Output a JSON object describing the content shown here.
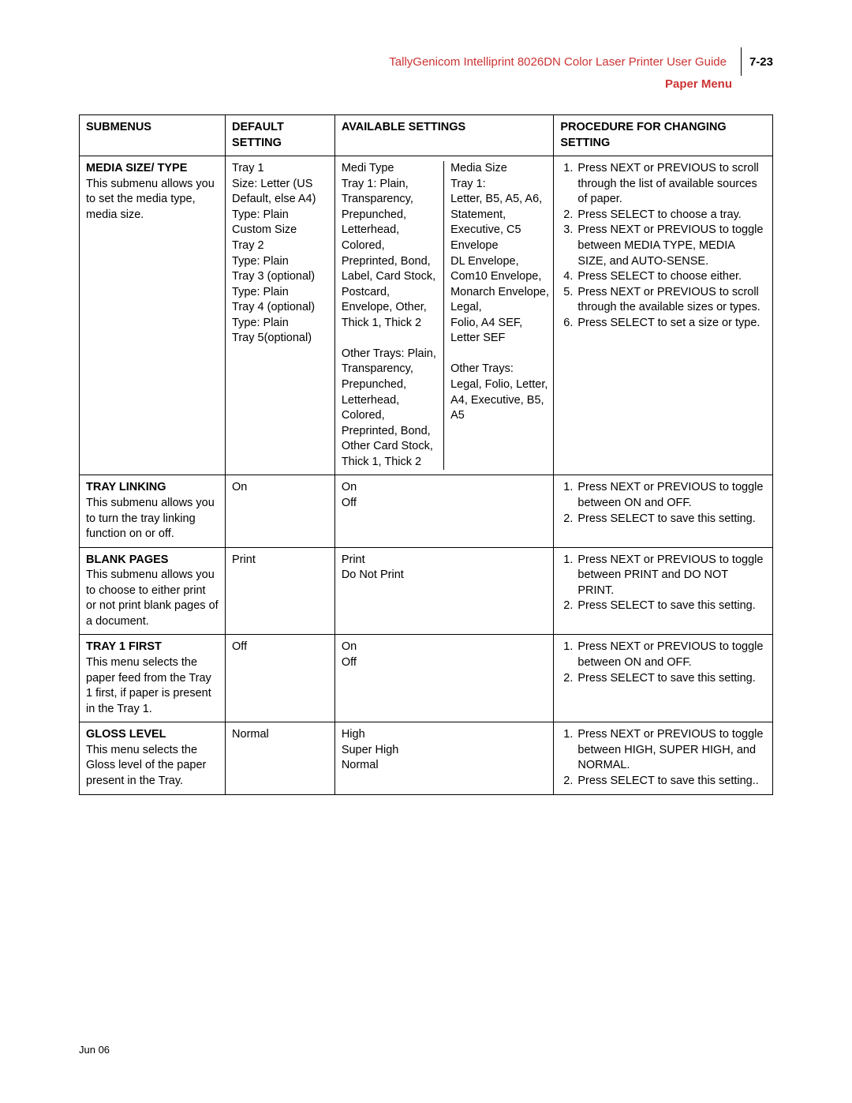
{
  "header": {
    "title": "TallyGenicom Intelliprint 8026DN Color Laser Printer User Guide",
    "page_num": "7-23",
    "subtitle": "Paper Menu"
  },
  "table": {
    "headers": {
      "c1": "SUBMENUS",
      "c2": "DEFAULT SETTING",
      "c3": "AVAILABLE SETTINGS",
      "c4": "PROCEDURE FOR CHANGING SETTING"
    },
    "rows": [
      {
        "submenu_title": "MEDIA SIZE/ TYPE",
        "submenu_desc": "This submenu allows you to set the media type, media size.",
        "default": "Tray 1\nSize: Letter (US Default, else A4)\nType: Plain\nCustom Size\nTray 2\nType: Plain\nTray 3 (optional)\nType: Plain\nTray 4 (optional)\nType: Plain\nTray 5(optional)",
        "available_split": true,
        "available_left": "Medi Type\nTray 1: Plain, Transparency, Prepunched, Letterhead, Colored, Preprinted, Bond, Label, Card Stock, Postcard, Envelope, Other, Thick 1, Thick 2\n\nOther Trays: Plain, Transparency, Prepunched, Letterhead, Colored, Preprinted, Bond, Other Card Stock, Thick 1, Thick 2",
        "available_right": "Media Size\nTray 1:\nLetter, B5, A5, A6, Statement, Executive, C5 Envelope\nDL Envelope, Com10 Envelope, Monarch Envelope, Legal,\nFolio, A4 SEF, Letter SEF\n\nOther Trays:\nLegal, Folio, Letter, A4, Executive, B5, A5",
        "procedure": [
          "Press NEXT or PREVIOUS to scroll through the list of available sources of paper.",
          "Press SELECT to choose a tray.",
          "Press NEXT or PREVIOUS to toggle between MEDIA TYPE, MEDIA SIZE, and AUTO-SENSE.",
          "Press SELECT to choose either.",
          "Press NEXT or PREVIOUS to scroll through the available sizes or types.",
          "Press SELECT to set a size or type."
        ]
      },
      {
        "submenu_title": "TRAY LINKING",
        "submenu_desc": "This submenu allows you to turn the tray linking function on or off.",
        "default": "On",
        "available": "On\nOff",
        "procedure": [
          "Press NEXT or PREVIOUS to toggle between ON and OFF.",
          "Press SELECT to save this setting."
        ]
      },
      {
        "submenu_title": "BLANK PAGES",
        "submenu_desc": "This submenu allows you to choose to either print or not print blank pages of a document.",
        "default": "Print",
        "available": "Print\nDo Not Print",
        "procedure": [
          "Press NEXT or PREVIOUS to toggle between PRINT and DO NOT PRINT.",
          "Press SELECT to save this setting."
        ]
      },
      {
        "submenu_title": "TRAY 1 FIRST",
        "submenu_desc": "This menu selects the paper feed from the Tray 1 first, if paper is present in the Tray 1.",
        "default": "Off",
        "available": "On\nOff",
        "procedure": [
          "Press NEXT or PREVIOUS to toggle between ON and OFF.",
          "Press SELECT to save this setting."
        ]
      },
      {
        "submenu_title": "GLOSS LEVEL",
        "submenu_desc": "This menu selects the Gloss level of the paper present in the Tray.",
        "default": "Normal",
        "available": "High\nSuper High\nNormal",
        "procedure": [
          "Press NEXT or PREVIOUS to toggle between HIGH, SUPER HIGH, and NORMAL.",
          "Press SELECT to save this setting.."
        ]
      }
    ]
  },
  "footer": "Jun 06",
  "colors": {
    "accent": "#cc3333",
    "text": "#000000",
    "border": "#000000",
    "background": "#ffffff"
  }
}
